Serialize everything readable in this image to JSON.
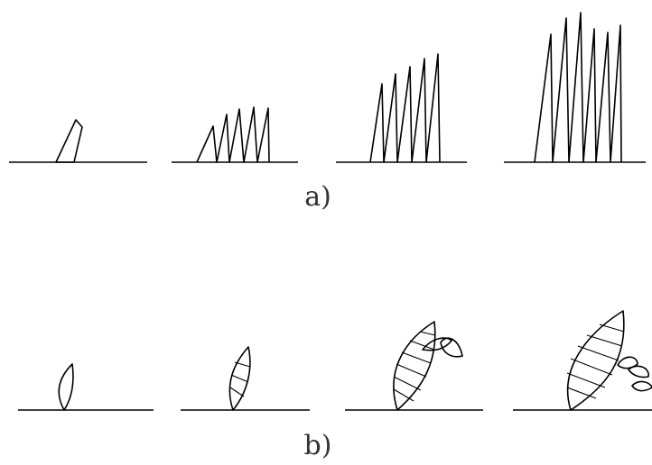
{
  "captions": {
    "a": "a)",
    "b": "b)"
  }
}
